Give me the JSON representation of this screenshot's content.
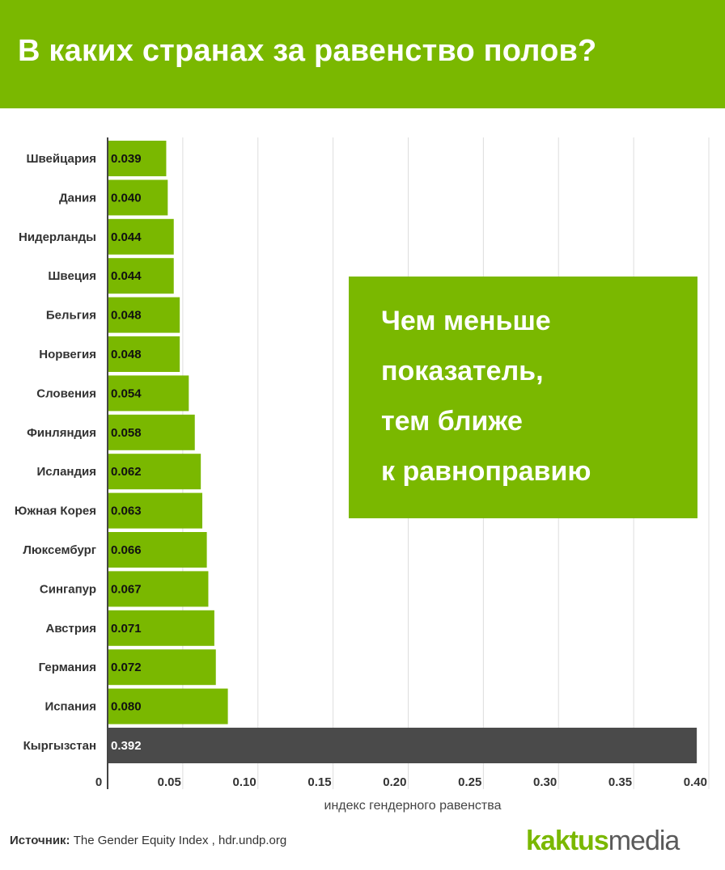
{
  "header": {
    "title": "В каких странах за равенство полов?"
  },
  "callout": {
    "lines": [
      "Чем меньше",
      "показатель,",
      "тем ближе",
      "к равноправию"
    ]
  },
  "source": {
    "label": "Источник:",
    "text": " The Gender Equity Index , hdr.undp.org"
  },
  "logo": {
    "part1": "kaktus",
    "part2": "media"
  },
  "colors": {
    "accent": "#7ab800",
    "highlight": "#4a4a4a",
    "grid": "#dddddd"
  },
  "chart_data": {
    "type": "bar",
    "orientation": "horizontal",
    "categories": [
      "Швейцария",
      "Дания",
      "Нидерланды",
      "Швеция",
      "Бельгия",
      "Норвегия",
      "Словения",
      "Финляндия",
      "Исландия",
      "Южная Корея",
      "Люксембург",
      "Сингапур",
      "Австрия",
      "Германия",
      "Испания",
      "Кыргызстан"
    ],
    "values": [
      0.039,
      0.04,
      0.044,
      0.044,
      0.048,
      0.048,
      0.054,
      0.058,
      0.062,
      0.063,
      0.066,
      0.067,
      0.071,
      0.072,
      0.08,
      0.392
    ],
    "value_labels": [
      "0.039",
      "0.040",
      "0.044",
      "0.044",
      "0.048",
      "0.048",
      "0.054",
      "0.058",
      "0.062",
      "0.063",
      "0.066",
      "0.067",
      "0.071",
      "0.072",
      "0.080",
      "0.392"
    ],
    "highlight_category": "Кыргызстан",
    "xlabel": "индекс гендерного равенства",
    "xlim": [
      0,
      0.4
    ],
    "xticks": [
      0,
      0.05,
      0.1,
      0.15,
      0.2,
      0.25,
      0.3,
      0.35,
      0.4
    ],
    "xtick_labels": [
      "0",
      "0.05",
      "0.10",
      "0.15",
      "0.20",
      "0.25",
      "0.30",
      "0.35",
      "0.40"
    ],
    "grid": "vertical"
  }
}
